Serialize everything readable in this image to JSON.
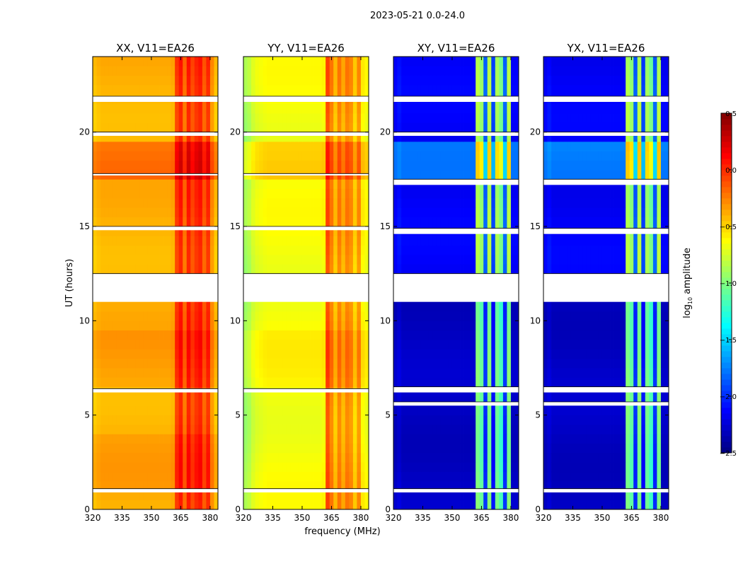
{
  "chart_data": {
    "type": "heatmap",
    "title": "2023-05-21 0.0-24.0",
    "xlabel": "frequency (MHz)",
    "ylabel": "UT (hours)",
    "xlim": [
      320,
      384
    ],
    "ylim": [
      0,
      24
    ],
    "xticks": [
      320,
      335,
      350,
      365,
      380
    ],
    "yticks": [
      0,
      5,
      10,
      15,
      20
    ],
    "freq_bin_MHz": 2,
    "time_bin_hours": 0.5,
    "colorbar": {
      "label_prefix": "log",
      "label_sub": "10",
      "label_suffix": " amplitude",
      "range": [
        -2.5,
        0.5
      ],
      "ticks": [
        "0.5",
        "0.0",
        "−0.5",
        "−1.0",
        "−1.5",
        "−2.0",
        "−2.5"
      ],
      "tick_values": [
        0.5,
        0.0,
        -0.5,
        -1.0,
        -1.5,
        -2.0,
        -2.5
      ],
      "colormap": "jet"
    },
    "panels": [
      {
        "title": "XX, V11=EA26",
        "freq_profile": [
          -0.45,
          -0.42,
          -0.4,
          -0.4,
          -0.4,
          -0.4,
          -0.4,
          -0.4,
          -0.4,
          -0.4,
          -0.4,
          -0.4,
          -0.4,
          -0.4,
          -0.4,
          -0.4,
          -0.4,
          -0.4,
          -0.4,
          -0.4,
          -0.38,
          -0.05,
          0.05,
          -0.2,
          0.05,
          -0.1,
          0.0,
          0.05,
          -0.15,
          0.0,
          -0.3,
          -0.45
        ],
        "time_mods": [
          {
            "from": 17.75,
            "to": 19.75,
            "delta": 0.2
          },
          {
            "from": 6.5,
            "to": 9.5,
            "delta": 0.06
          },
          {
            "from": 1.0,
            "to": 4.0,
            "delta": 0.05
          }
        ],
        "flagged_hours": [
          [
            11.0,
            12.5
          ],
          [
            21.6,
            21.9
          ],
          [
            19.8,
            20.0
          ],
          [
            14.8,
            15.0
          ],
          [
            0.9,
            1.1
          ],
          [
            6.2,
            6.4
          ],
          [
            17.7,
            17.8
          ]
        ]
      },
      {
        "title": "YY, V11=EA26",
        "freq_profile": [
          -0.9,
          -0.85,
          -0.75,
          -0.7,
          -0.68,
          -0.66,
          -0.65,
          -0.65,
          -0.65,
          -0.65,
          -0.65,
          -0.65,
          -0.65,
          -0.65,
          -0.65,
          -0.65,
          -0.65,
          -0.65,
          -0.65,
          -0.65,
          -0.63,
          -0.1,
          -0.25,
          -0.45,
          -0.25,
          -0.4,
          -0.25,
          -0.3,
          -0.5,
          -0.3,
          -0.6,
          -0.65
        ],
        "time_mods": [
          {
            "from": 17.75,
            "to": 19.75,
            "delta": 0.2
          },
          {
            "from": 6.5,
            "to": 9.5,
            "delta": 0.05
          }
        ],
        "flagged_hours": [
          [
            11.0,
            12.5
          ],
          [
            21.6,
            21.9
          ],
          [
            19.8,
            20.0
          ],
          [
            14.8,
            15.0
          ],
          [
            0.9,
            1.1
          ],
          [
            6.2,
            6.4
          ],
          [
            17.7,
            17.8
          ]
        ]
      },
      {
        "title": "XY, V11=EA26",
        "freq_profile": [
          -2.3,
          -2.25,
          -2.3,
          -2.3,
          -2.3,
          -2.3,
          -2.3,
          -2.3,
          -2.3,
          -2.3,
          -2.3,
          -2.3,
          -2.3,
          -2.3,
          -2.3,
          -2.3,
          -2.3,
          -2.3,
          -2.3,
          -2.3,
          -2.3,
          -1.0,
          -1.1,
          -2.0,
          -1.0,
          -2.1,
          -1.05,
          -1.2,
          -2.0,
          -1.0,
          -2.3,
          -2.3
        ],
        "time_mods": [
          {
            "from": 17.75,
            "to": 19.75,
            "delta": 0.4
          },
          {
            "from": 12.5,
            "to": 24,
            "delta": 0.15
          }
        ],
        "flagged_hours": [
          [
            11.0,
            12.5
          ],
          [
            21.6,
            21.9
          ],
          [
            19.8,
            20.0
          ],
          [
            14.6,
            14.9
          ],
          [
            17.2,
            17.5
          ],
          [
            6.2,
            6.5
          ],
          [
            5.5,
            5.7
          ],
          [
            0.9,
            1.1
          ]
        ]
      },
      {
        "title": "YX, V11=EA26",
        "freq_profile": [
          -2.3,
          -2.25,
          -2.3,
          -2.3,
          -2.3,
          -2.3,
          -2.3,
          -2.3,
          -2.3,
          -2.3,
          -2.3,
          -2.3,
          -2.3,
          -2.3,
          -2.3,
          -2.3,
          -2.3,
          -2.3,
          -2.3,
          -2.3,
          -2.3,
          -1.0,
          -1.1,
          -2.0,
          -1.0,
          -2.1,
          -1.05,
          -1.2,
          -2.0,
          -1.0,
          -2.3,
          -2.3
        ],
        "time_mods": [
          {
            "from": 17.75,
            "to": 19.75,
            "delta": 0.4
          },
          {
            "from": 12.5,
            "to": 24,
            "delta": 0.15
          }
        ],
        "flagged_hours": [
          [
            11.0,
            12.5
          ],
          [
            21.6,
            21.9
          ],
          [
            19.8,
            20.0
          ],
          [
            14.6,
            14.9
          ],
          [
            17.2,
            17.5
          ],
          [
            6.2,
            6.5
          ],
          [
            5.5,
            5.7
          ],
          [
            0.9,
            1.1
          ]
        ]
      }
    ]
  }
}
